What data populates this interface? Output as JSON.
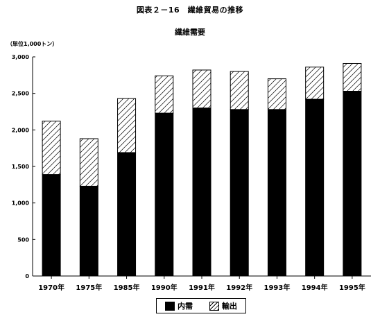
{
  "figure_title": "図表２－16　繊維貿易の推移",
  "chart_data": {
    "type": "bar",
    "stacked": true,
    "title": "繊維需要",
    "unit_label": "（単位1,000トン）",
    "categories": [
      "1970年",
      "1975年",
      "1985年",
      "1990年",
      "1991年",
      "1992年",
      "1993年",
      "1994年",
      "1995年"
    ],
    "series": [
      {
        "name": "内需",
        "values": [
          1390,
          1230,
          1690,
          2230,
          2300,
          2280,
          2280,
          2420,
          2530
        ],
        "fill": "#000000"
      },
      {
        "name": "輸出",
        "values": [
          730,
          650,
          740,
          510,
          520,
          520,
          420,
          440,
          380
        ],
        "fill": "hatch"
      }
    ],
    "ylim": [
      0,
      3000
    ],
    "yticks": [
      0,
      500,
      1000,
      1500,
      2000,
      2500,
      3000
    ],
    "ytick_labels": [
      "0",
      "500",
      "1,000",
      "1,500",
      "2,000",
      "2,500",
      "3,000"
    ],
    "grid": false,
    "legend_position": "bottom-center"
  }
}
